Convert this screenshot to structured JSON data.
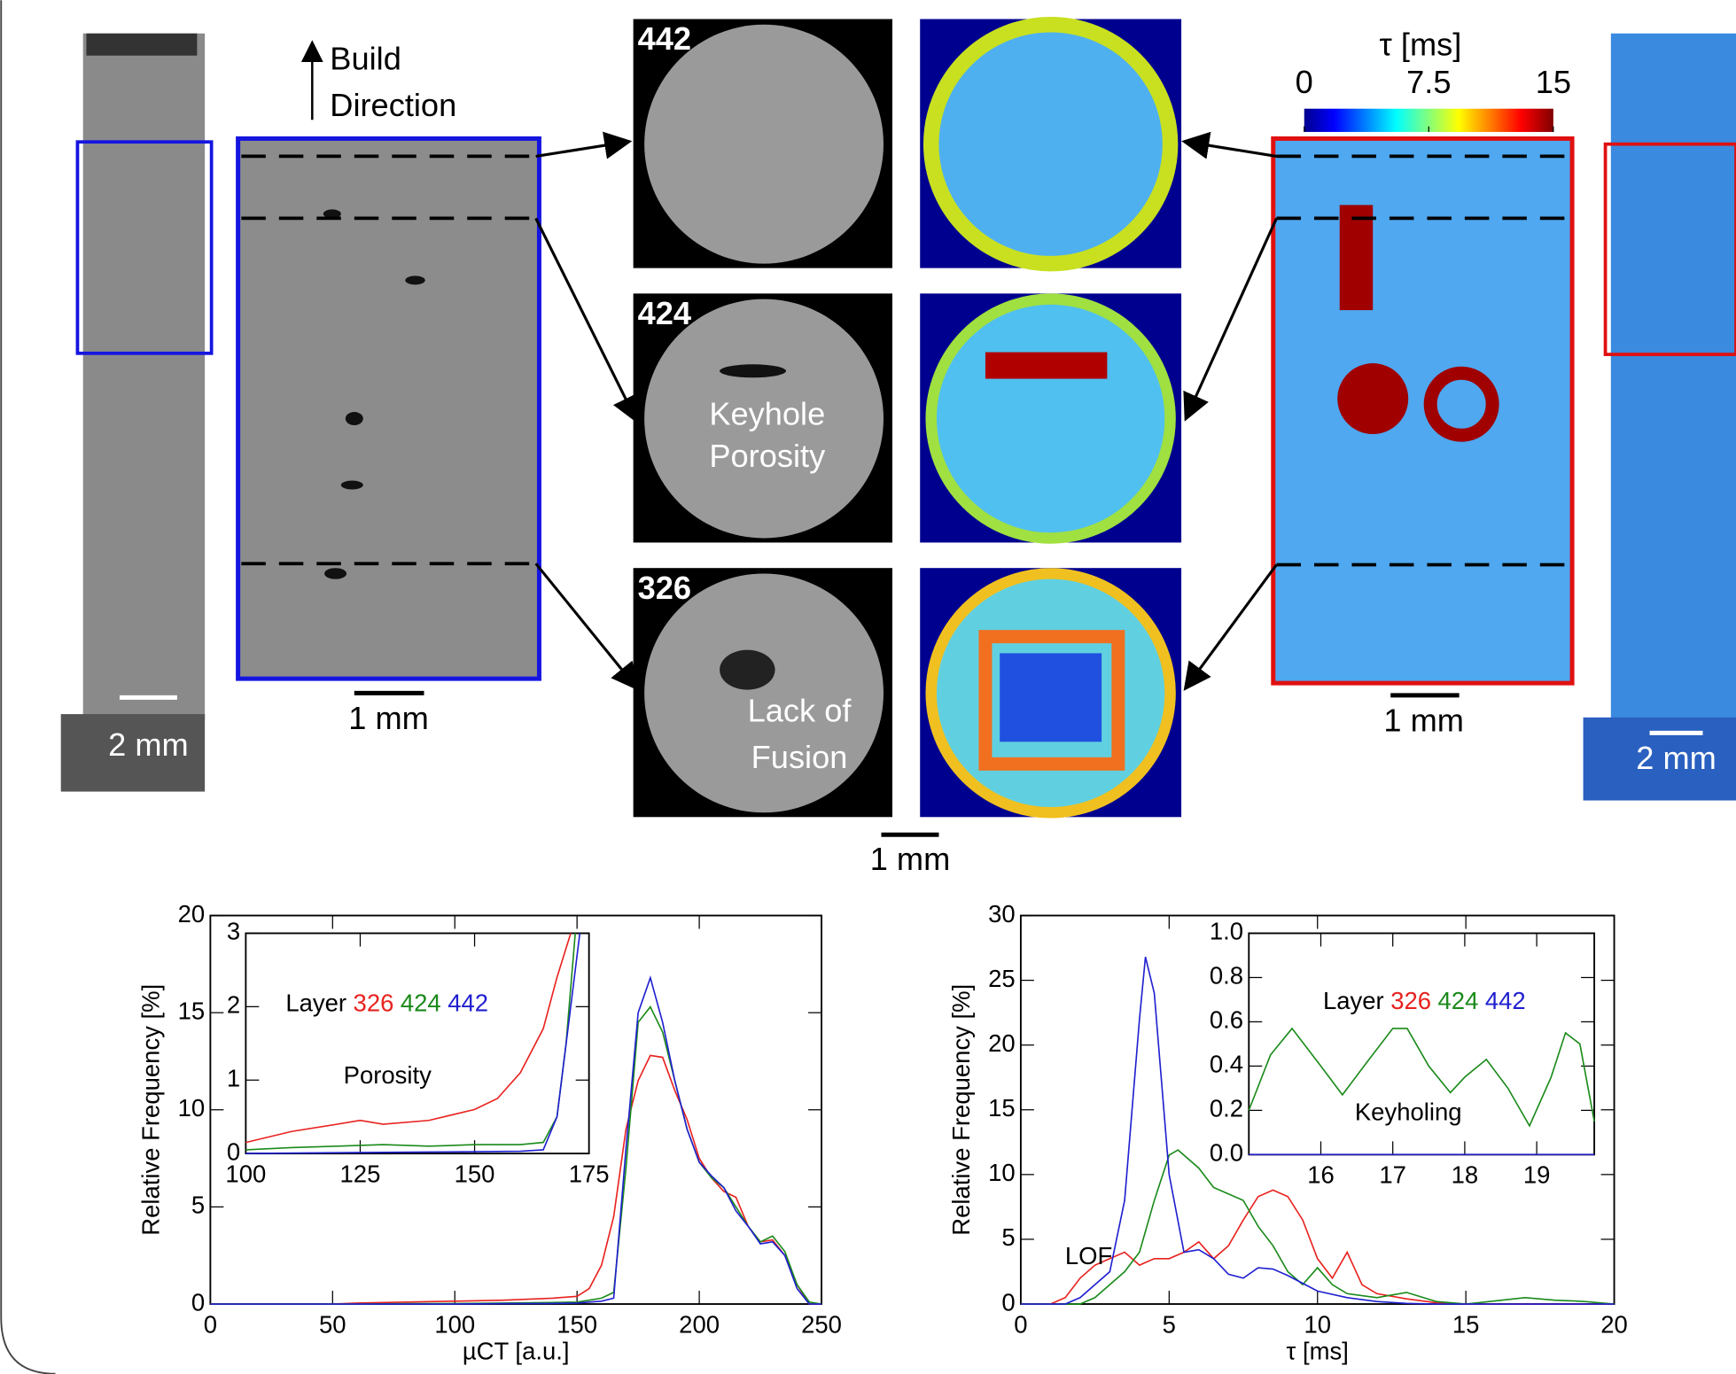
{
  "figure": {
    "build_direction": [
      "Build",
      "Direction"
    ],
    "scale_bars": [
      "2 mm",
      "1 mm",
      "1 mm",
      "1 mm",
      "2 mm"
    ],
    "layers": [
      "442",
      "424",
      "326"
    ],
    "annotations": {
      "keyhole": [
        "Keyhole",
        "Porosity"
      ],
      "lof": [
        "Lack of",
        "Fusion"
      ]
    },
    "colorbar": {
      "label": "τ [ms]",
      "lim": [
        0,
        15
      ],
      "ticks": [
        0,
        7.5,
        15
      ]
    }
  },
  "chart_data": [
    {
      "type": "line",
      "xlabel": "µCT [a.u.]",
      "ylabel": "Relative Frequency [%]",
      "xlim": [
        0,
        250
      ],
      "ylim": [
        0,
        20
      ],
      "xticks": [
        0,
        50,
        100,
        150,
        200,
        250
      ],
      "yticks": [
        0,
        5,
        10,
        15,
        20
      ],
      "series": [
        {
          "name": "326",
          "color": "#e8221f",
          "x": [
            0,
            50,
            60,
            80,
            100,
            120,
            140,
            150,
            155,
            160,
            165,
            170,
            175,
            180,
            185,
            190,
            195,
            200,
            205,
            210,
            215,
            220,
            225,
            230,
            235,
            240,
            245,
            250
          ],
          "values": [
            0,
            0,
            0.05,
            0.1,
            0.15,
            0.2,
            0.3,
            0.4,
            0.8,
            2,
            4.5,
            9,
            11.5,
            12.8,
            12.7,
            11,
            9.5,
            7.5,
            6.5,
            5.8,
            5.5,
            4,
            3.2,
            3.3,
            2.5,
            1,
            0,
            0
          ]
        },
        {
          "name": "424",
          "color": "#1a8a1a",
          "x": [
            0,
            50,
            60,
            80,
            100,
            120,
            140,
            150,
            155,
            160,
            165,
            170,
            175,
            180,
            185,
            190,
            195,
            200,
            205,
            210,
            215,
            220,
            225,
            230,
            235,
            240,
            245,
            250
          ],
          "values": [
            0,
            0,
            0,
            0.02,
            0.03,
            0.05,
            0.08,
            0.1,
            0.2,
            0.3,
            0.6,
            7,
            14.5,
            15.3,
            14,
            11.5,
            9,
            7.3,
            6.5,
            6,
            5,
            4,
            3.2,
            3.5,
            2.7,
            1,
            0.1,
            0
          ]
        },
        {
          "name": "442",
          "color": "#1f1fd0",
          "x": [
            0,
            50,
            60,
            80,
            100,
            120,
            140,
            150,
            155,
            160,
            165,
            170,
            175,
            180,
            185,
            190,
            195,
            200,
            205,
            210,
            215,
            220,
            225,
            230,
            235,
            240,
            245,
            250
          ],
          "values": [
            0,
            0,
            0,
            0,
            0,
            0.02,
            0.03,
            0.05,
            0.1,
            0.15,
            0.3,
            8,
            15,
            16.8,
            14.5,
            11.5,
            9,
            7.3,
            6.6,
            6,
            4.8,
            4,
            3.1,
            3.2,
            2.5,
            0.8,
            0,
            0
          ]
        }
      ]
    },
    {
      "type": "line",
      "legend_title": "Layer",
      "annotations": [
        "Porosity"
      ],
      "xlim": [
        100,
        175
      ],
      "ylim": [
        0,
        3
      ],
      "xticks": [
        100,
        125,
        150,
        175
      ],
      "yticks": [
        0,
        1,
        2,
        3
      ],
      "series": [
        {
          "name": "326",
          "color": "#e8221f",
          "x": [
            100,
            110,
            120,
            125,
            130,
            140,
            150,
            155,
            160,
            165,
            168,
            171
          ],
          "values": [
            0.15,
            0.3,
            0.4,
            0.45,
            0.4,
            0.45,
            0.6,
            0.75,
            1.1,
            1.7,
            2.4,
            3
          ]
        },
        {
          "name": "424",
          "color": "#1a8a1a",
          "x": [
            100,
            110,
            120,
            130,
            140,
            150,
            160,
            165,
            168,
            170,
            172
          ],
          "values": [
            0.05,
            0.08,
            0.1,
            0.12,
            0.1,
            0.12,
            0.12,
            0.15,
            0.5,
            1.5,
            3
          ]
        },
        {
          "name": "442",
          "color": "#1f1fd0",
          "x": [
            100,
            120,
            140,
            160,
            165,
            168,
            171,
            173
          ],
          "values": [
            0,
            0.01,
            0.02,
            0.03,
            0.05,
            0.5,
            2,
            3
          ]
        }
      ]
    },
    {
      "type": "line",
      "xlabel": "τ [ms]",
      "ylabel": "Relative Frequency [%]",
      "annotations": [
        "LOF"
      ],
      "xlim": [
        0,
        20
      ],
      "ylim": [
        0,
        30
      ],
      "xticks": [
        0,
        5,
        10,
        15,
        20
      ],
      "yticks": [
        0,
        5,
        10,
        15,
        20,
        25,
        30
      ],
      "series": [
        {
          "name": "326",
          "color": "#e8221f",
          "x": [
            0,
            1,
            1.5,
            2,
            2.5,
            3,
            3.5,
            4,
            4.5,
            5,
            5.5,
            6,
            6.5,
            7,
            7.5,
            8,
            8.5,
            9,
            9.5,
            10,
            10.5,
            11,
            11.5,
            12,
            13,
            14,
            15,
            20
          ],
          "values": [
            0,
            0,
            0.5,
            2,
            3,
            3.5,
            4,
            3,
            3.5,
            3.5,
            4,
            4.8,
            3.5,
            4.5,
            6.5,
            8.3,
            8.8,
            8.3,
            6.5,
            3.5,
            2,
            4,
            1.5,
            0.8,
            0.4,
            0.1,
            0,
            0
          ]
        },
        {
          "name": "424",
          "color": "#1a8a1a",
          "x": [
            0,
            2,
            2.5,
            3,
            3.5,
            4,
            4.5,
            5,
            5.3,
            5.5,
            6,
            6.5,
            7,
            7.5,
            8,
            8.5,
            9,
            9.5,
            10,
            10.5,
            11,
            12,
            13,
            14,
            15,
            17,
            18,
            19,
            20
          ],
          "values": [
            0,
            0,
            0.5,
            1.5,
            2.5,
            4,
            8,
            11.5,
            11.9,
            11.5,
            10.5,
            9,
            8.5,
            8,
            6,
            4.5,
            2.5,
            1.5,
            2.8,
            1.5,
            0.8,
            0.5,
            0.9,
            0.2,
            0,
            0.5,
            0.3,
            0.2,
            0
          ]
        },
        {
          "name": "442",
          "color": "#1f1fd0",
          "x": [
            0,
            1.5,
            2,
            2.5,
            3,
            3.5,
            4,
            4.2,
            4.5,
            5,
            5.5,
            6,
            6.5,
            7,
            7.5,
            8,
            8.5,
            9,
            9.5,
            10,
            11,
            12,
            13,
            14,
            20
          ],
          "values": [
            0,
            0,
            0.5,
            1.5,
            2.5,
            8,
            22,
            26.8,
            24,
            10,
            4,
            4.2,
            3.5,
            2.3,
            2,
            2.8,
            2.7,
            2.2,
            1.6,
            1,
            0.5,
            0.2,
            0.05,
            0,
            0
          ]
        }
      ]
    },
    {
      "type": "line",
      "legend_title": "Layer",
      "annotations": [
        "Keyholing"
      ],
      "xlim": [
        15,
        19.8
      ],
      "ylim": [
        0,
        1
      ],
      "xticks": [
        16,
        17,
        18,
        19
      ],
      "yticks": [
        {
          "value": 0,
          "label": "0.0"
        },
        {
          "value": 0.2,
          "label": "0.2"
        },
        {
          "value": 0.4,
          "label": "0.4"
        },
        {
          "value": 0.6,
          "label": "0.6"
        },
        {
          "value": 0.8,
          "label": "0.8"
        },
        {
          "value": 1,
          "label": "1.0"
        }
      ],
      "series": [
        {
          "name": "326",
          "color": "#e8221f",
          "x": [
            15,
            19.8
          ],
          "values": [
            0,
            0
          ]
        },
        {
          "name": "424",
          "color": "#1a8a1a",
          "x": [
            15,
            15.3,
            15.6,
            16,
            16.3,
            16.6,
            17,
            17.2,
            17.5,
            17.8,
            18,
            18.3,
            18.6,
            18.9,
            19.2,
            19.4,
            19.6,
            19.8
          ],
          "values": [
            0.2,
            0.45,
            0.57,
            0.4,
            0.27,
            0.4,
            0.57,
            0.57,
            0.4,
            0.28,
            0.35,
            0.43,
            0.3,
            0.13,
            0.35,
            0.55,
            0.5,
            0.15
          ]
        },
        {
          "name": "442",
          "color": "#1f1fd0",
          "x": [
            15,
            19.8
          ],
          "values": [
            0,
            0
          ]
        }
      ]
    }
  ]
}
